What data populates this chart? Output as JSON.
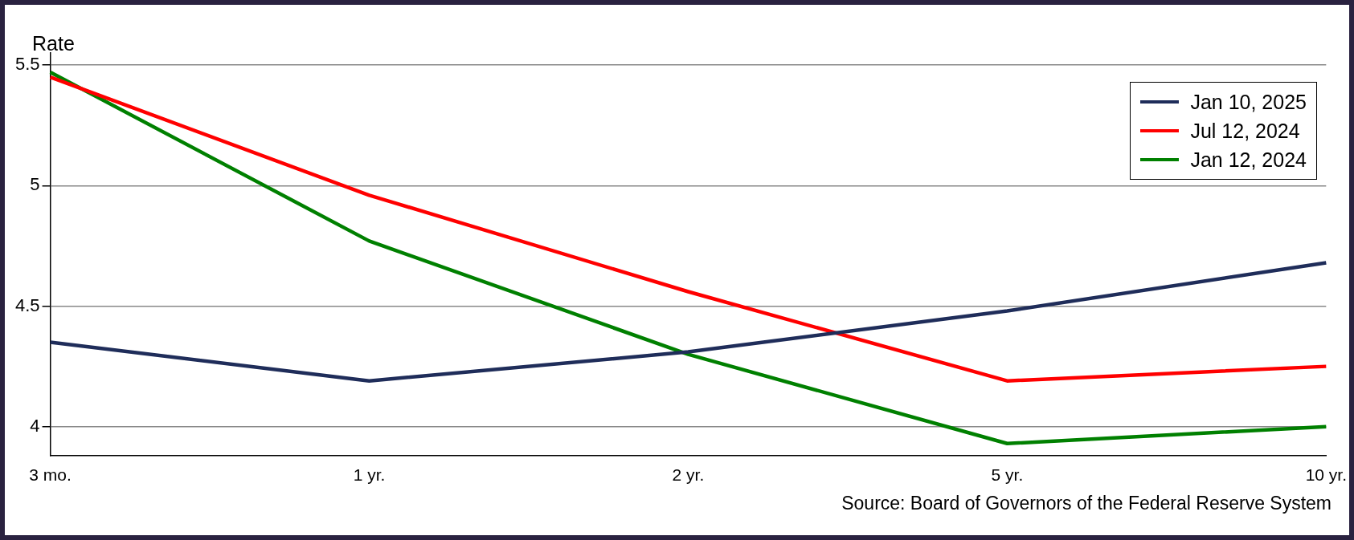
{
  "chart_data": {
    "type": "line",
    "ylabel": "Rate",
    "categories": [
      "3 mo.",
      "1 yr.",
      "2 yr.",
      "5 yr.",
      "10 yr."
    ],
    "series": [
      {
        "name": "Jan 10, 2025",
        "color": "#1f2d5a",
        "values": [
          4.35,
          4.19,
          4.31,
          4.48,
          4.68
        ]
      },
      {
        "name": "Jul 12, 2024",
        "color": "#ff0000",
        "values": [
          5.45,
          4.96,
          4.56,
          4.19,
          4.25
        ]
      },
      {
        "name": "Jan 12, 2024",
        "color": "#008000",
        "values": [
          5.47,
          4.77,
          4.3,
          3.93,
          4.0
        ]
      }
    ],
    "ylim": [
      3.88,
      5.55
    ],
    "yticks": [
      4,
      {
        "value": 4.5,
        "label": "4.5"
      },
      5,
      {
        "value": 5.5,
        "label": "5.5"
      }
    ],
    "grid": "y",
    "legend": "top right",
    "marker": "none",
    "line_style": "solid",
    "annotations": [
      "Source: Board of Governors of the Federal Reserve System"
    ]
  }
}
